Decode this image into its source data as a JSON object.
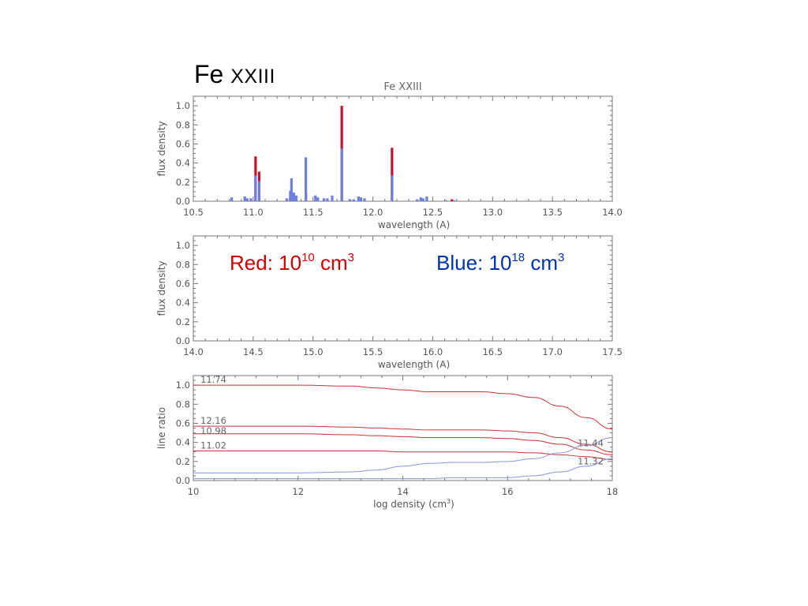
{
  "slide": {
    "title_prefix": "Fe ",
    "title_ion": "XXIII"
  },
  "annotations": {
    "red": {
      "prefix": "Red: 10",
      "exp": "10",
      "unit": " cm",
      "unit_exp": "3"
    },
    "blue": {
      "prefix": "Blue: 10",
      "exp": "18",
      "unit": " cm",
      "unit_exp": "3"
    }
  },
  "colors": {
    "red": "#c8102e",
    "blue": "#6f7fe0",
    "red_line": "#cc3333",
    "blue_line": "#8c96e6",
    "axis": "#777777"
  },
  "chart_data": [
    {
      "type": "bar",
      "title": "Fe XXIII",
      "xlabel": "wavelength (A)",
      "ylabel": "flux density",
      "xlim": [
        10.5,
        14.0
      ],
      "ylim": [
        0.0,
        1.1
      ],
      "xticks": [
        "10.5",
        "11.0",
        "11.5",
        "12.0",
        "12.5",
        "13.0",
        "13.5",
        "14.0"
      ],
      "yticks": [
        "0.0",
        "0.2",
        "0.4",
        "0.6",
        "0.8",
        "1.0"
      ],
      "series": [
        {
          "name": "Red",
          "color": "#c8102e",
          "x": [
            11.02,
            11.05,
            11.44,
            11.74,
            12.16,
            11.32,
            11.34,
            12.66
          ],
          "values": [
            0.47,
            0.31,
            0.09,
            1.0,
            0.56,
            0.06,
            0.04,
            0.02
          ]
        },
        {
          "name": "Blue",
          "color": "#6f7fe0",
          "x": [
            10.82,
            10.93,
            10.95,
            10.98,
            11.02,
            11.05,
            11.28,
            11.31,
            11.32,
            11.34,
            11.36,
            11.44,
            11.52,
            11.54,
            11.59,
            11.62,
            11.66,
            11.74,
            11.81,
            11.84,
            11.88,
            11.9,
            11.93,
            12.16,
            12.37,
            12.4,
            12.42,
            12.45,
            12.61,
            12.68
          ],
          "values": [
            0.04,
            0.05,
            0.03,
            0.03,
            0.27,
            0.21,
            0.03,
            0.11,
            0.24,
            0.09,
            0.06,
            0.46,
            0.06,
            0.04,
            0.03,
            0.03,
            0.06,
            0.55,
            0.02,
            0.02,
            0.05,
            0.04,
            0.03,
            0.27,
            0.02,
            0.04,
            0.03,
            0.05,
            0.01,
            0.01
          ]
        }
      ]
    },
    {
      "type": "bar",
      "title": "",
      "xlabel": "wavelength (A)",
      "ylabel": "flux density",
      "xlim": [
        14.0,
        17.5
      ],
      "ylim": [
        0.0,
        1.1
      ],
      "xticks": [
        "14.0",
        "14.5",
        "15.0",
        "15.5",
        "16.0",
        "16.5",
        "17.0",
        "17.5"
      ],
      "yticks": [
        "0.0",
        "0.2",
        "0.4",
        "0.6",
        "0.8",
        "1.0"
      ],
      "series": []
    },
    {
      "type": "line",
      "title": "",
      "xlabel": "log density (cm",
      "xlabel_sup": "3",
      "xlabel_end": ")",
      "ylabel": "line ratio",
      "xlim": [
        10,
        18
      ],
      "ylim": [
        0.0,
        1.1
      ],
      "xticks": [
        "10",
        "12",
        "14",
        "16",
        "18"
      ],
      "yticks": [
        "0.0",
        "0.2",
        "0.4",
        "0.6",
        "0.8",
        "1.0"
      ],
      "x": [
        10,
        11,
        12,
        13,
        13.5,
        14,
        14.5,
        15,
        15.5,
        16,
        16.5,
        17,
        17.5,
        18
      ],
      "series": [
        {
          "label": "11.74",
          "color": "#cc3333",
          "values": [
            1.0,
            1.0,
            1.0,
            0.99,
            0.97,
            0.95,
            0.93,
            0.93,
            0.93,
            0.91,
            0.87,
            0.78,
            0.66,
            0.54
          ]
        },
        {
          "label": "12.16",
          "color": "#cc3333",
          "values": [
            0.57,
            0.57,
            0.57,
            0.56,
            0.55,
            0.54,
            0.53,
            0.53,
            0.53,
            0.52,
            0.5,
            0.45,
            0.38,
            0.3
          ]
        },
        {
          "label": "10.98",
          "color": "#cc3333",
          "values": [
            0.49,
            0.49,
            0.49,
            0.48,
            0.47,
            0.46,
            0.45,
            0.45,
            0.45,
            0.44,
            0.42,
            0.38,
            0.32,
            0.27
          ]
        },
        {
          "label": "11.02",
          "color": "#cc3333",
          "values": [
            0.31,
            0.31,
            0.31,
            0.31,
            0.31,
            0.3,
            0.3,
            0.3,
            0.3,
            0.3,
            0.29,
            0.27,
            0.25,
            0.22
          ]
        },
        {
          "label": "11.44",
          "color": "#8c96e6",
          "values": [
            0.08,
            0.08,
            0.08,
            0.09,
            0.11,
            0.15,
            0.18,
            0.19,
            0.19,
            0.2,
            0.23,
            0.29,
            0.37,
            0.45
          ]
        },
        {
          "label": "11.32",
          "color": "#8c96e6",
          "values": [
            0.02,
            0.02,
            0.02,
            0.02,
            0.02,
            0.02,
            0.02,
            0.03,
            0.03,
            0.03,
            0.05,
            0.09,
            0.15,
            0.23
          ]
        }
      ]
    }
  ]
}
